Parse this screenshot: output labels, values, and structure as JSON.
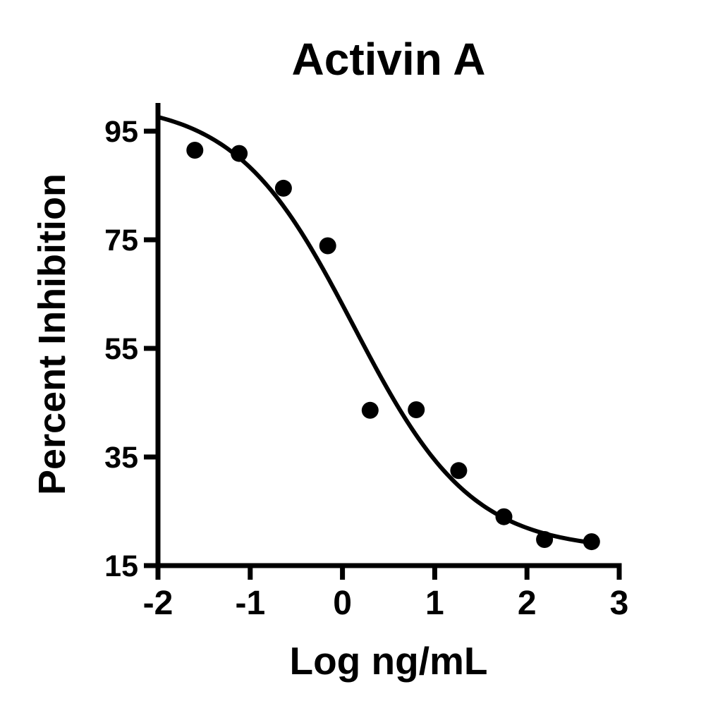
{
  "chart_data": {
    "type": "scatter",
    "title": "Activin A",
    "xlabel": "Log ng/mL",
    "ylabel": "Percent Inhibition",
    "x_ticks": [
      -2,
      -1,
      0,
      1,
      2,
      3
    ],
    "y_ticks": [
      15,
      35,
      55,
      75,
      95
    ],
    "xlim": [
      -2,
      3
    ],
    "ylim": [
      15,
      100.2
    ],
    "grid": false,
    "legend": "none",
    "marker_color": "#000000",
    "line_color": "#000000",
    "points": {
      "x": [
        -1.6,
        -1.12,
        -0.64,
        -0.16,
        0.3,
        0.8,
        1.26,
        1.75,
        2.19,
        2.7
      ],
      "y": [
        91.5,
        90.9,
        84.5,
        73.9,
        43.6,
        43.7,
        32.5,
        24.0,
        19.8,
        19.4
      ]
    },
    "fit_curve": {
      "model": "four_parameter_logistic_decreasing",
      "top": 100.5,
      "bottom": 17.8,
      "log_ec50": 0.12,
      "hill_slope": 0.68,
      "x_start": -1.985,
      "x_end": 2.695
    }
  }
}
